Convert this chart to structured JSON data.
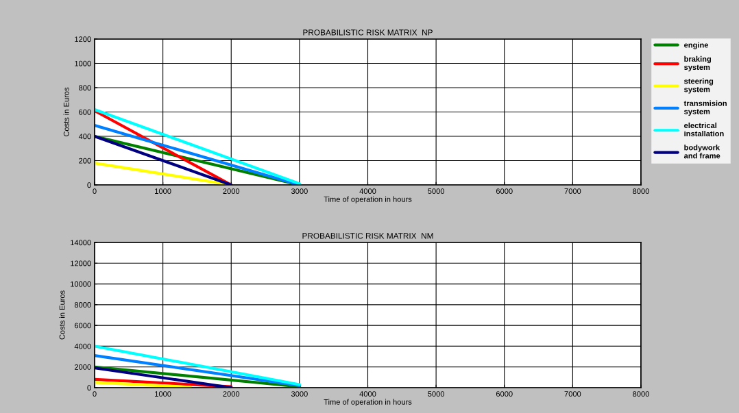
{
  "chart_data": [
    {
      "type": "line",
      "title": "PROBABILISTIC RISK MATRIX  NP",
      "xlabel": "Time of operation in hours",
      "ylabel": "Costs in Euros",
      "xlim": [
        0,
        8000
      ],
      "xticks": [
        0,
        1000,
        2000,
        3000,
        4000,
        5000,
        6000,
        7000,
        8000
      ],
      "ylim": [
        0,
        1200
      ],
      "yticks": [
        0,
        200,
        400,
        600,
        800,
        1000,
        1200
      ],
      "grid": true,
      "legend": "right",
      "series": [
        {
          "name": "engine",
          "color": "#008000",
          "x": [
            0,
            3000
          ],
          "values": [
            400,
            0
          ]
        },
        {
          "name": "braking system",
          "color": "#ff0000",
          "x": [
            0,
            2000
          ],
          "values": [
            610,
            0
          ]
        },
        {
          "name": "steering system",
          "color": "#ffff00",
          "x": [
            0,
            2000
          ],
          "values": [
            180,
            0
          ]
        },
        {
          "name": "transmision system",
          "color": "#0080ff",
          "x": [
            0,
            3000
          ],
          "values": [
            490,
            0
          ]
        },
        {
          "name": "electrical installation",
          "color": "#00ffff",
          "x": [
            0,
            3000
          ],
          "values": [
            620,
            10
          ]
        },
        {
          "name": "bodywork and frame",
          "color": "#000080",
          "x": [
            0,
            2000
          ],
          "values": [
            400,
            0
          ]
        }
      ]
    },
    {
      "type": "line",
      "title": "PROBABILISTIC RISK MATRIX  NM",
      "xlabel": "Time of operation in hours",
      "ylabel": "Costs in Euros",
      "xlim": [
        0,
        8000
      ],
      "xticks": [
        0,
        1000,
        2000,
        3000,
        4000,
        5000,
        6000,
        7000,
        8000
      ],
      "ylim": [
        0,
        14000
      ],
      "yticks": [
        0,
        2000,
        4000,
        6000,
        8000,
        10000,
        12000,
        14000
      ],
      "grid": true,
      "series": [
        {
          "color": "#008000",
          "x": [
            0,
            3000
          ],
          "values": [
            2000,
            100
          ]
        },
        {
          "color": "#ff0000",
          "x": [
            0,
            2000
          ],
          "values": [
            800,
            100
          ]
        },
        {
          "color": "#ffff00",
          "x": [
            0,
            1400
          ],
          "values": [
            500,
            50
          ]
        },
        {
          "color": "#0080ff",
          "x": [
            0,
            3000
          ],
          "values": [
            3100,
            200
          ]
        },
        {
          "color": "#00ffff",
          "x": [
            0,
            3000
          ],
          "values": [
            4000,
            300
          ]
        },
        {
          "color": "#000080",
          "x": [
            0,
            2000
          ],
          "values": [
            1900,
            0
          ]
        }
      ]
    }
  ]
}
